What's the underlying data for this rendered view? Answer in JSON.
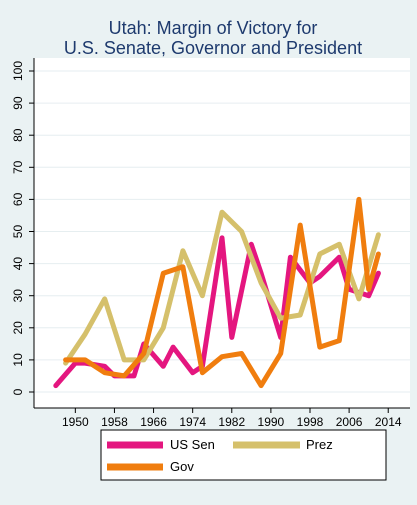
{
  "chart_data": {
    "type": "line",
    "title_lines": [
      "Utah: Margin of Victory for",
      "U.S. Senate, Governor and President"
    ],
    "xlabel": "",
    "ylabel": "",
    "xlim": [
      1944,
      2016
    ],
    "ylim": [
      0,
      100
    ],
    "x_ticks": [
      1950,
      1958,
      1966,
      1974,
      1982,
      1990,
      1998,
      2006,
      2014
    ],
    "y_ticks": [
      0,
      10,
      20,
      30,
      40,
      50,
      60,
      70,
      80,
      90,
      100
    ],
    "grid": "horizontal",
    "legend_position": "bottom",
    "series": [
      {
        "name": "US Sen",
        "color": "#e4167f",
        "x": [
          1946,
          1950,
          1952,
          1956,
          1958,
          1962,
          1964,
          1968,
          1970,
          1974,
          1976,
          1980,
          1982,
          1986,
          1988,
          1992,
          1994,
          1998,
          2000,
          2004,
          2006,
          2010,
          2012
        ],
        "y": [
          2,
          9,
          9,
          8,
          5,
          5,
          15,
          8,
          14,
          6,
          8,
          48,
          17,
          46,
          37,
          17,
          42,
          34,
          36,
          42,
          32,
          30,
          37
        ]
      },
      {
        "name": "Prez",
        "color": "#d5c06b",
        "x": [
          1948,
          1952,
          1956,
          1960,
          1964,
          1968,
          1972,
          1976,
          1980,
          1984,
          1988,
          1992,
          1996,
          2000,
          2004,
          2008,
          2012
        ],
        "y": [
          9,
          18,
          29,
          10,
          10,
          20,
          44,
          30,
          56,
          50,
          34,
          23,
          24,
          43,
          46,
          29,
          49
        ]
      },
      {
        "name": "Gov",
        "color": "#f07d0e",
        "x": [
          1948,
          1952,
          1956,
          1960,
          1964,
          1968,
          1972,
          1976,
          1980,
          1984,
          1988,
          1992,
          1996,
          2000,
          2004,
          2008,
          2010,
          2012
        ],
        "y": [
          10,
          10,
          6,
          5,
          12,
          37,
          39,
          6,
          11,
          12,
          2,
          12,
          52,
          14,
          16,
          60,
          32,
          43
        ]
      }
    ]
  }
}
